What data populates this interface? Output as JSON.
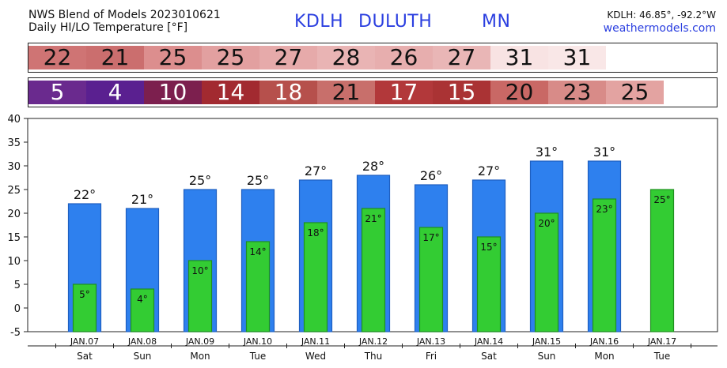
{
  "header": {
    "line1": "NWS Blend of Models 2023010621",
    "line2": "Daily HI/LO Temperature [°F]",
    "station_id": "KDLH",
    "station_name": "DULUTH",
    "state": "MN",
    "coords": "KDLH: 46.85°, -92.2°W",
    "site": "weathermodels.com"
  },
  "hi_row": {
    "values": [
      "22",
      "21",
      "25",
      "25",
      "27",
      "28",
      "26",
      "27",
      "31",
      "31"
    ],
    "colors": [
      "#cf7474",
      "#cb6e6e",
      "#dc8e8e",
      "#e2a0a0",
      "#e6aaaa",
      "#e9b4b4",
      "#e7aeae",
      "#e9b6b6",
      "#f8e3e3",
      "#f9e7e7"
    ]
  },
  "lo_row": {
    "values": [
      "5",
      "4",
      "10",
      "14",
      "18",
      "21",
      "17",
      "15",
      "20",
      "23",
      "25"
    ],
    "colors": [
      "#6a2a8e",
      "#5a2090",
      "#7c1f4e",
      "#a22a30",
      "#b6504c",
      "#c86f6b",
      "#b2383a",
      "#aa3334",
      "#c96865",
      "#d88b88",
      "#e3a3a1"
    ],
    "text_colors": [
      "#ffffff",
      "#ffffff",
      "#ffffff",
      "#ffffff",
      "#ffffff",
      "#111111",
      "#ffffff",
      "#ffffff",
      "#111111",
      "#111111",
      "#111111"
    ]
  },
  "chart_data": {
    "type": "bar",
    "categories": [
      "JAN.07",
      "JAN.08",
      "JAN.09",
      "JAN.10",
      "JAN.11",
      "JAN.12",
      "JAN.13",
      "JAN.14",
      "JAN.15",
      "JAN.16",
      "JAN.17"
    ],
    "weekdays": [
      "Sat",
      "Sun",
      "Mon",
      "Tue",
      "Wed",
      "Thu",
      "Fri",
      "Sat",
      "Sun",
      "Mon",
      "Tue"
    ],
    "series": [
      {
        "values": [
          22,
          21,
          25,
          25,
          27,
          28,
          26,
          27,
          31,
          31,
          null
        ],
        "color": "#2e80ee"
      },
      {
        "values": [
          5,
          4,
          10,
          14,
          18,
          21,
          17,
          15,
          20,
          23,
          25
        ],
        "color": "#33cc33"
      }
    ],
    "hi_labels": [
      "22°",
      "21°",
      "25°",
      "25°",
      "27°",
      "28°",
      "26°",
      "27°",
      "31°",
      "31°",
      ""
    ],
    "lo_labels": [
      "5°",
      "4°",
      "10°",
      "14°",
      "18°",
      "21°",
      "17°",
      "15°",
      "20°",
      "23°",
      "25°"
    ],
    "ylim": [
      -5,
      40
    ],
    "yticks": [
      "40",
      "35",
      "30",
      "25",
      "20",
      "15",
      "10",
      "5",
      "0",
      "-5"
    ],
    "grid": false
  }
}
